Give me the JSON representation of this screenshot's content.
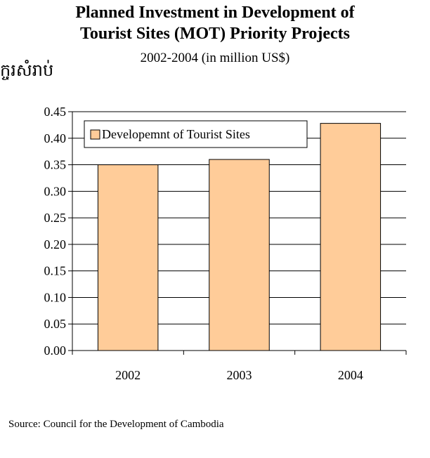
{
  "header": {
    "title_line1": "Planned Investment in Development of",
    "title_line2": "Tourist Sites (MOT) Priority Projects",
    "subtitle": "2002-2004 (in million US$)",
    "side_text": "ក្ចរសំរាប់"
  },
  "footer": {
    "source": "Source: Council for the Development of Cambodia"
  },
  "chart_data": {
    "type": "bar",
    "title": "Planned Investment in Development of Tourist Sites (MOT) Priority Projects",
    "subtitle": "2002-2004 (in million US$)",
    "categories": [
      "2002",
      "2003",
      "2004"
    ],
    "series": [
      {
        "name": "Developemnt of Tourist Sites",
        "values": [
          0.35,
          0.36,
          0.428
        ]
      }
    ],
    "ylim": [
      0,
      0.45
    ],
    "yticks": [
      "0.00",
      "0.05",
      "0.10",
      "0.15",
      "0.20",
      "0.25",
      "0.30",
      "0.35",
      "0.40",
      "0.45"
    ],
    "grid": true,
    "legend": "top-left",
    "colors": {
      "bar_fill": "#ffcc99",
      "bar_stroke": "#000000",
      "grid": "#000000"
    }
  }
}
